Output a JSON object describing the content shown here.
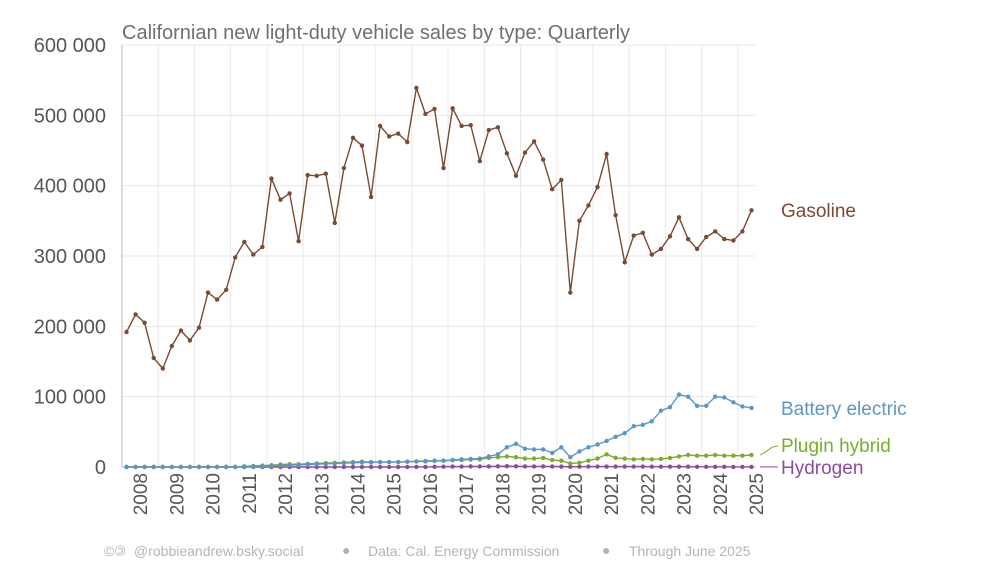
{
  "chart_data": {
    "type": "line",
    "title": "Californian new light-duty vehicle sales by type: Quarterly",
    "xlabel": "",
    "ylabel": "",
    "x_start": 2008.0,
    "x_step": 0.25,
    "xlim": [
      2008.0,
      2025.5
    ],
    "ylim": [
      0,
      600000
    ],
    "y_ticks": [
      0,
      100000,
      200000,
      300000,
      400000,
      500000,
      600000
    ],
    "y_tick_labels": [
      "0",
      "100 000",
      "200 000",
      "300 000",
      "400 000",
      "500 000",
      "600 000"
    ],
    "x_tick_labels": [
      "2008",
      "2009",
      "2010",
      "2011",
      "2012",
      "2013",
      "2014",
      "2015",
      "2016",
      "2017",
      "2018",
      "2019",
      "2020",
      "2021",
      "2022",
      "2023",
      "2024",
      "2025"
    ],
    "grid": true,
    "series": [
      {
        "name": "Gasoline",
        "color": "#7a4a32",
        "values": [
          192000,
          217000,
          205000,
          155000,
          140000,
          172000,
          194000,
          180000,
          198000,
          248000,
          238000,
          252000,
          298000,
          320000,
          302000,
          313000,
          410000,
          380000,
          389000,
          321000,
          415000,
          414000,
          417000,
          347000,
          425000,
          468000,
          457000,
          384000,
          485000,
          470000,
          474000,
          462000,
          539000,
          502000,
          509000,
          425000,
          510000,
          485000,
          486000,
          435000,
          479000,
          483000,
          446000,
          414000,
          447000,
          463000,
          437000,
          395000,
          408000,
          248000,
          350000,
          372000,
          398000,
          445000,
          358000,
          291000,
          329000,
          333000,
          302000,
          310000,
          328000,
          355000,
          324000,
          310000,
          327000,
          335000,
          324000,
          322000,
          335000,
          365000
        ]
      },
      {
        "name": "Battery electric",
        "color": "#5b97c6",
        "values": [
          0,
          0,
          0,
          0,
          0,
          0,
          0,
          0,
          0,
          0,
          0,
          0,
          0,
          0,
          500,
          800,
          1500,
          2000,
          2500,
          3000,
          3500,
          4000,
          4500,
          5000,
          5500,
          6000,
          6500,
          6500,
          7000,
          7000,
          7000,
          7500,
          8000,
          8000,
          8500,
          9000,
          10000,
          11000,
          11500,
          12000,
          15000,
          18000,
          28000,
          33000,
          26000,
          25000,
          25000,
          20000,
          28000,
          14000,
          22000,
          28000,
          32000,
          37000,
          43000,
          48000,
          58000,
          60000,
          65000,
          80000,
          85000,
          103000,
          100000,
          87000,
          87000,
          100000,
          99000,
          92000,
          86000,
          84000
        ]
      },
      {
        "name": "Plugin hybrid",
        "color": "#7aad2a",
        "values": [
          0,
          0,
          0,
          0,
          0,
          0,
          0,
          0,
          0,
          0,
          0,
          0,
          0,
          1000,
          1500,
          2000,
          2500,
          3500,
          4000,
          4000,
          4500,
          5000,
          5500,
          6000,
          6500,
          7000,
          7500,
          7000,
          7000,
          7000,
          7000,
          7500,
          8000,
          8500,
          9000,
          9000,
          9500,
          10000,
          10500,
          11000,
          13000,
          14000,
          15000,
          14000,
          12000,
          12000,
          13000,
          10000,
          9000,
          5000,
          6000,
          9000,
          12000,
          18000,
          13000,
          12000,
          11000,
          11500,
          11000,
          11500,
          13000,
          15000,
          17000,
          16000,
          16000,
          17000,
          16000,
          16000,
          16000,
          17000
        ]
      },
      {
        "name": "Hydrogen",
        "color": "#8e4aa0",
        "values": [
          0,
          0,
          0,
          0,
          0,
          0,
          0,
          0,
          0,
          0,
          0,
          0,
          0,
          0,
          0,
          0,
          0,
          0,
          0,
          0,
          0,
          0,
          0,
          0,
          0,
          0,
          0,
          0,
          0,
          0,
          0,
          0,
          100,
          200,
          300,
          400,
          500,
          600,
          700,
          800,
          900,
          1000,
          1100,
          1000,
          900,
          900,
          800,
          700,
          600,
          300,
          400,
          500,
          600,
          600,
          500,
          500,
          500,
          500,
          400,
          400,
          400,
          400,
          400,
          300,
          300,
          300,
          300,
          200,
          200,
          200
        ]
      }
    ]
  },
  "footer": {
    "handle": "@robbieandrew.bsky.social",
    "source": "Data: Cal. Energy Commission",
    "through": "Through June 2025",
    "separator": "●"
  }
}
